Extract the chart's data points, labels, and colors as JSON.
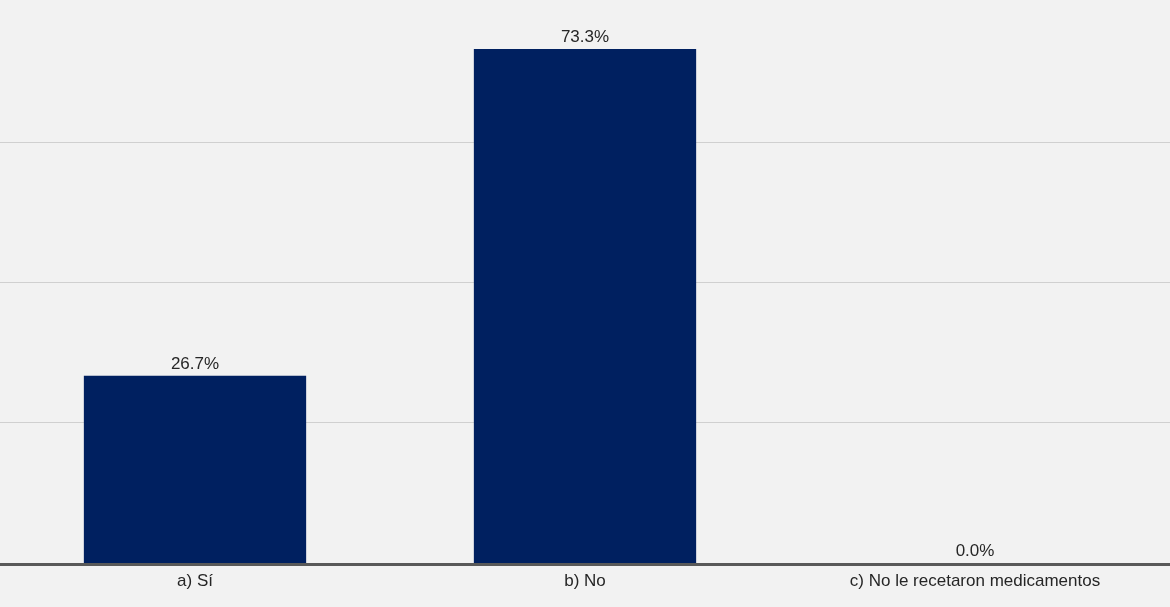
{
  "chart_data": {
    "type": "bar",
    "categories": [
      "a) Sí",
      "b) No",
      "c) No le recetaron medicamentos"
    ],
    "values": [
      26.7,
      73.3,
      0.0
    ],
    "value_labels": [
      "26.7%",
      "73.3%",
      "0.0%"
    ],
    "color": "#002060",
    "ylim": [
      0,
      80
    ],
    "yticks": [
      {
        "value": 0,
        "label": null
      },
      {
        "value": 20,
        "label": null
      },
      {
        "value": 40,
        "label": null
      },
      {
        "value": 60,
        "label": null
      },
      {
        "value": 80,
        "label": null
      }
    ],
    "grid": "y",
    "tick_labels": "x",
    "legend": false
  }
}
